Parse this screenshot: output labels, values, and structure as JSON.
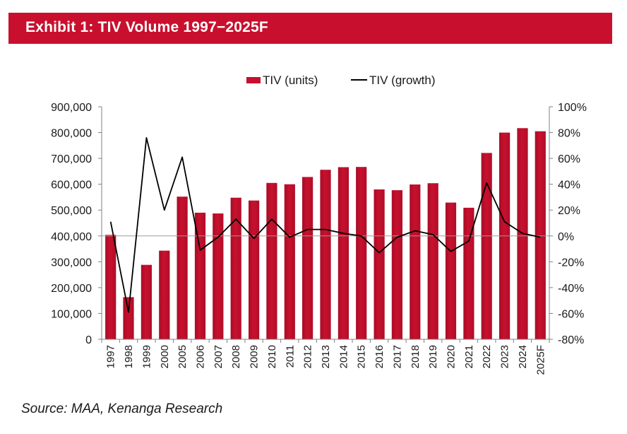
{
  "exhibit": {
    "title": "Exhibit 1: TIV Volume 1997−2025F",
    "source": "Source: MAA, Kenanga Research"
  },
  "colors": {
    "header_bg": "#c8102e",
    "bar": "#c8102e",
    "line": "#000000",
    "zero_line": "#9a9a9a"
  },
  "chart_data": {
    "type": "bar",
    "categories": [
      "1997",
      "1998",
      "1999",
      "2000",
      "2005",
      "2006",
      "2007",
      "2008",
      "2009",
      "2010",
      "2011",
      "2012",
      "2013",
      "2014",
      "2015",
      "2016",
      "2017",
      "2018",
      "2019",
      "2020",
      "2021",
      "2022",
      "2023",
      "2024",
      "2025F"
    ],
    "series": [
      {
        "name": "TIV (units)",
        "type": "bar",
        "axis": "left",
        "values": [
          404000,
          163000,
          288000,
          343000,
          552000,
          490000,
          487000,
          548000,
          537000,
          605000,
          600000,
          628000,
          656000,
          666000,
          667000,
          580000,
          577000,
          599000,
          604000,
          529000,
          509000,
          721000,
          800000,
          817000,
          805000
        ]
      },
      {
        "name": "TIV (growth)",
        "type": "line",
        "axis": "right",
        "values": [
          0.11,
          -0.59,
          0.76,
          0.2,
          0.61,
          -0.11,
          -0.01,
          0.13,
          -0.02,
          0.13,
          -0.01,
          0.05,
          0.05,
          0.02,
          0.0,
          -0.13,
          -0.01,
          0.04,
          0.01,
          -0.12,
          -0.04,
          0.41,
          0.11,
          0.02,
          -0.01
        ]
      }
    ],
    "legend": [
      "TIV (units)",
      "TIV (growth)"
    ],
    "legend_position": "top-center",
    "y_left": {
      "lim": [
        0,
        900000
      ],
      "ticks": [
        0,
        100000,
        200000,
        300000,
        400000,
        500000,
        600000,
        700000,
        800000,
        900000
      ],
      "tick_labels": [
        "0",
        "100,000",
        "200,000",
        "300,000",
        "400,000",
        "500,000",
        "600,000",
        "700,000",
        "800,000",
        "900,000"
      ]
    },
    "y_right": {
      "lim": [
        -0.8,
        1.0
      ],
      "ticks": [
        -0.8,
        -0.6,
        -0.4,
        -0.2,
        0,
        0.2,
        0.4,
        0.6,
        0.8,
        1.0
      ],
      "tick_labels": [
        "-80%",
        "-60%",
        "-40%",
        "-20%",
        "0%",
        "20%",
        "40%",
        "60%",
        "80%",
        "100%"
      ]
    },
    "grid": false
  }
}
